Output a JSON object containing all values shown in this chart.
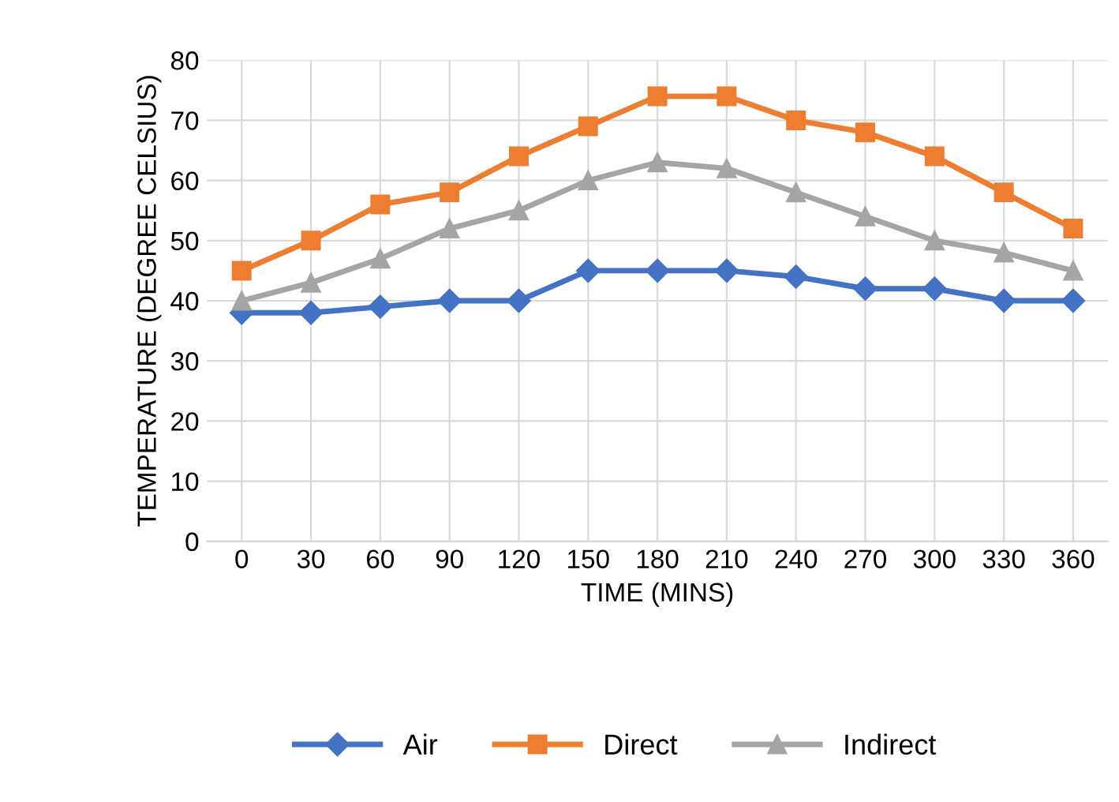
{
  "chart_data": {
    "type": "line",
    "xlabel": "TIME (MINS)",
    "ylabel": "TEMPERATURE (DEGREE CELSIUS)",
    "categories": [
      "0",
      "30",
      "60",
      "90",
      "120",
      "150",
      "180",
      "210",
      "240",
      "270",
      "300",
      "330",
      "360"
    ],
    "series": [
      {
        "name": "Air",
        "color": "#4472c4",
        "marker": "diamond",
        "values": [
          38,
          38,
          39,
          40,
          40,
          45,
          45,
          45,
          44,
          42,
          42,
          40,
          40
        ]
      },
      {
        "name": "Direct",
        "color": "#ed7d31",
        "marker": "square",
        "values": [
          45,
          50,
          56,
          58,
          64,
          69,
          74,
          74,
          70,
          68,
          64,
          58,
          52
        ]
      },
      {
        "name": "Indirect",
        "color": "#a5a5a5",
        "marker": "triangle",
        "values": [
          40,
          43,
          47,
          52,
          55,
          60,
          63,
          62,
          58,
          54,
          50,
          48,
          45
        ]
      }
    ],
    "ylim": [
      0,
      80
    ],
    "yticks": [
      0,
      10,
      20,
      30,
      40,
      50,
      60,
      70,
      80
    ],
    "grid": true,
    "legend": "bottom"
  }
}
